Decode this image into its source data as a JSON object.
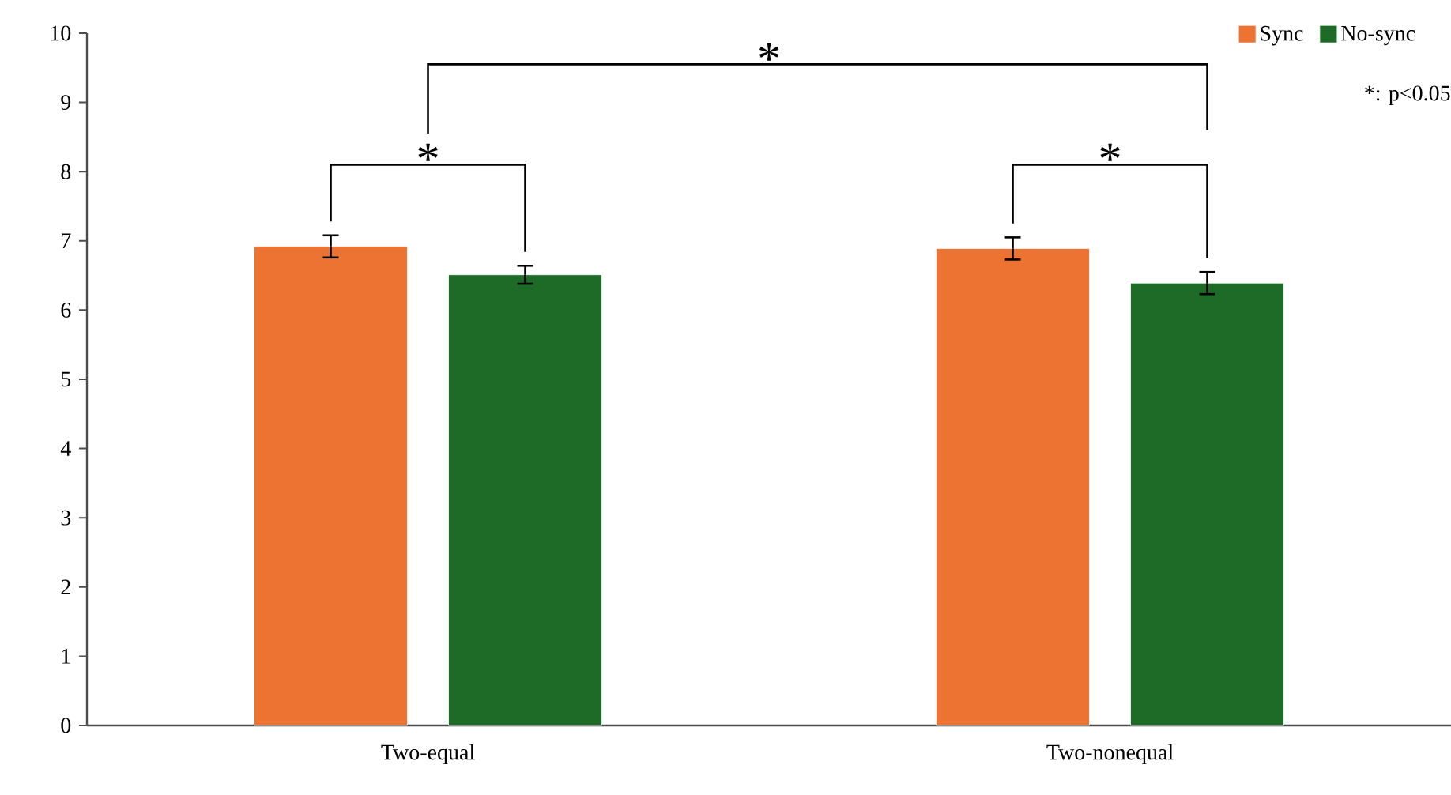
{
  "chart_data": {
    "type": "bar",
    "categories": [
      "Two-equal",
      "Two-nonequal"
    ],
    "series": [
      {
        "name": "Sync",
        "color": "#ed7333",
        "values": [
          6.92,
          6.89
        ],
        "errors": [
          0.16,
          0.16
        ]
      },
      {
        "name": "No-sync",
        "color": "#1d6b27",
        "values": [
          6.51,
          6.39
        ],
        "errors": [
          0.13,
          0.16
        ]
      }
    ],
    "ylim": [
      0,
      10
    ],
    "yticks": [
      0,
      1,
      2,
      3,
      4,
      5,
      6,
      7,
      8,
      9,
      10
    ],
    "legend": "top right",
    "grid": false,
    "annotations": [
      "*",
      "*",
      "*",
      "*: p<0.05"
    ]
  }
}
